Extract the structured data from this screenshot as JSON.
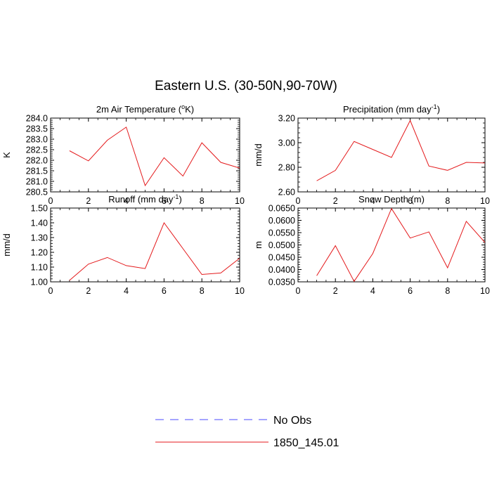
{
  "title": "Eastern U.S. (30-50N,90-70W)",
  "legend": {
    "entries": [
      {
        "label": "No Obs",
        "color": "#4b4bff",
        "dash": true
      },
      {
        "label": "1850_145.01",
        "color": "#e41a1c",
        "dash": false
      }
    ]
  },
  "chart_data": [
    {
      "type": "line",
      "title_main": "2m Air Temperature (",
      "title_sup": "o",
      "title_tail": "K)",
      "ylabel": "K",
      "xlim": [
        0,
        10
      ],
      "ylim": [
        280.5,
        284.0
      ],
      "xticks": [
        0,
        2,
        4,
        6,
        8,
        10
      ],
      "yticks": [
        280.5,
        281.0,
        281.5,
        282.0,
        282.5,
        283.0,
        283.5,
        284.0
      ],
      "ydecimals": 1,
      "series": [
        {
          "x": [
            1,
            2,
            3,
            4,
            5,
            6,
            7,
            8,
            9,
            10
          ],
          "values": [
            282.45,
            281.97,
            282.95,
            283.57,
            280.8,
            282.12,
            281.25,
            282.83,
            281.9,
            281.63
          ]
        }
      ]
    },
    {
      "type": "line",
      "title_main": "Precipitation (mm day",
      "title_sup": "-1",
      "title_tail": ")",
      "ylabel": "mm/d",
      "xlim": [
        0,
        10
      ],
      "ylim": [
        2.6,
        3.2
      ],
      "xticks": [
        0,
        2,
        4,
        6,
        8,
        10
      ],
      "yticks": [
        2.6,
        2.8,
        3.0,
        3.2
      ],
      "ydecimals": 2,
      "series": [
        {
          "x": [
            1,
            2,
            3,
            4,
            5,
            6,
            7,
            8,
            9,
            10
          ],
          "values": [
            2.69,
            2.775,
            3.01,
            2.945,
            2.88,
            3.18,
            2.81,
            2.775,
            2.84,
            2.835
          ]
        }
      ]
    },
    {
      "type": "line",
      "title_main": "Runoff (mm day",
      "title_sup": "-1",
      "title_tail": ")",
      "ylabel": "mm/d",
      "xlim": [
        0,
        10
      ],
      "ylim": [
        1.0,
        1.5
      ],
      "xticks": [
        0,
        2,
        4,
        6,
        8,
        10
      ],
      "yticks": [
        1.0,
        1.1,
        1.2,
        1.3,
        1.4,
        1.5
      ],
      "ydecimals": 2,
      "series": [
        {
          "x": [
            1,
            2,
            3,
            4,
            5,
            6,
            7,
            8,
            9,
            10
          ],
          "values": [
            1.01,
            1.12,
            1.165,
            1.11,
            1.09,
            1.4,
            1.225,
            1.05,
            1.06,
            1.16
          ]
        }
      ]
    },
    {
      "type": "line",
      "title_main": "Snow Depth (m)",
      "title_sup": "",
      "title_tail": "",
      "ylabel": "m",
      "xlim": [
        0,
        10
      ],
      "ylim": [
        0.035,
        0.065
      ],
      "xticks": [
        0,
        2,
        4,
        6,
        8,
        10
      ],
      "yticks": [
        0.035,
        0.04,
        0.045,
        0.05,
        0.055,
        0.06,
        0.065
      ],
      "ydecimals": 4,
      "series": [
        {
          "x": [
            1,
            2,
            3,
            4,
            5,
            6,
            7,
            8,
            9,
            10
          ],
          "values": [
            0.0375,
            0.0497,
            0.0352,
            0.0465,
            0.0648,
            0.0528,
            0.0553,
            0.0407,
            0.0596,
            0.051
          ]
        }
      ]
    }
  ]
}
